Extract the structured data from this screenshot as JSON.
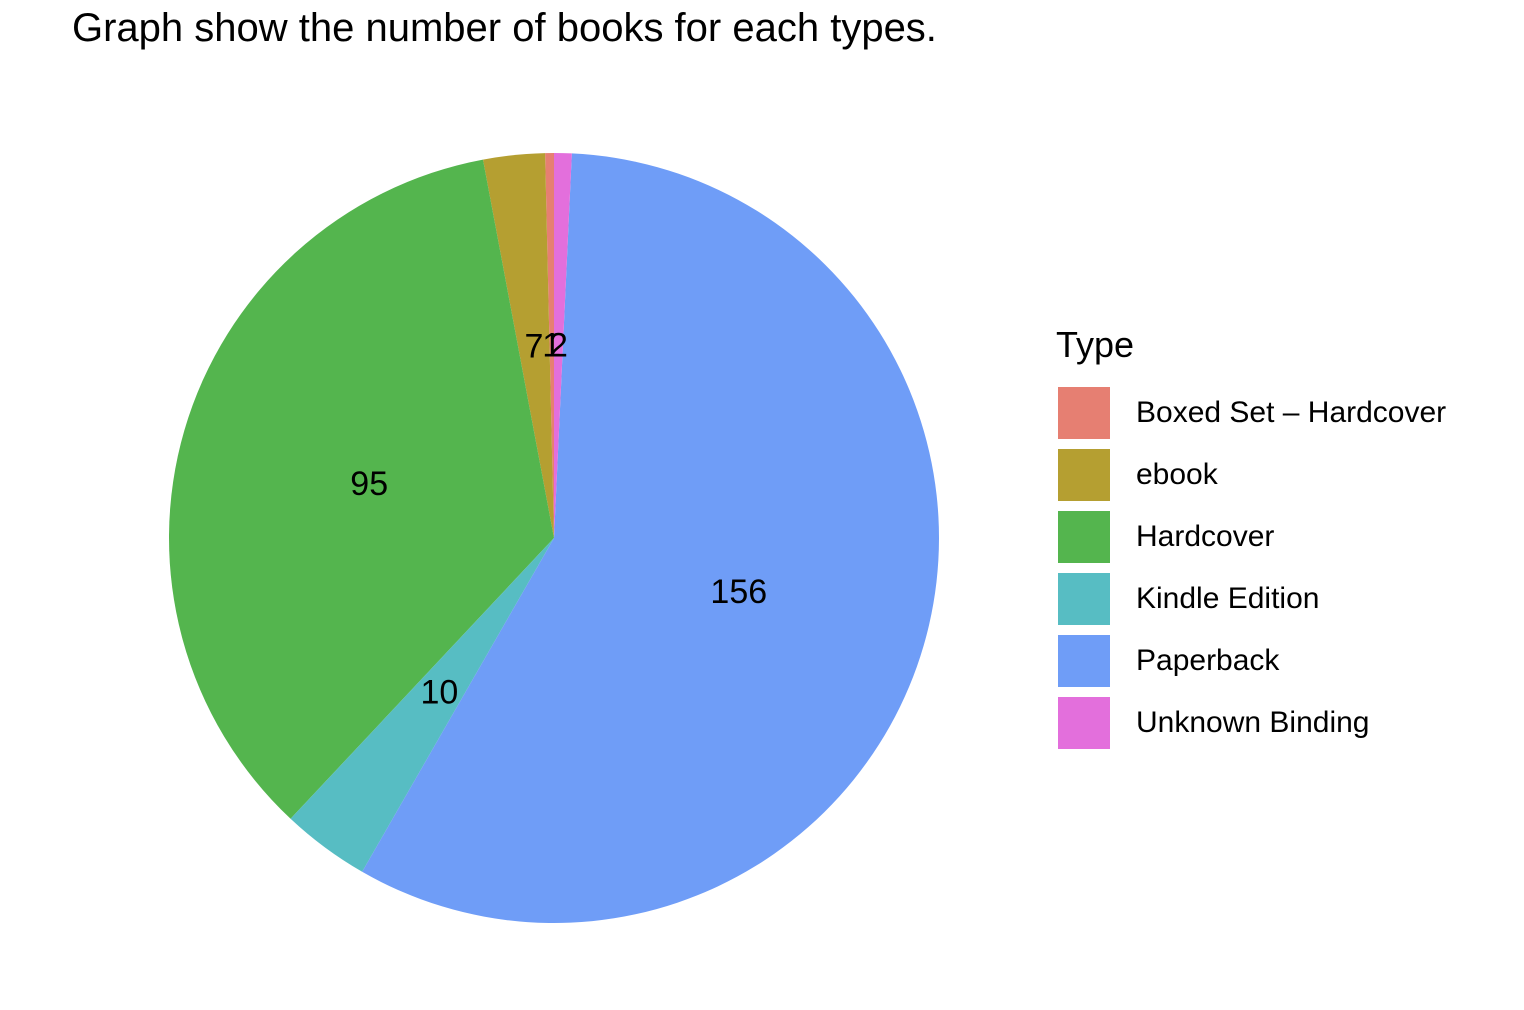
{
  "chart_data": {
    "type": "pie",
    "title": "Graph show the number of books for each types.",
    "legend_title": "Type",
    "legend_position": "right",
    "slices": [
      {
        "name": "Boxed Set – Hardcover",
        "value": 1,
        "label": "1",
        "color": "#E67F72"
      },
      {
        "name": "ebook",
        "value": 7,
        "label": "7",
        "color": "#B59F31"
      },
      {
        "name": "Hardcover",
        "value": 95,
        "label": "95",
        "color": "#54B54E"
      },
      {
        "name": "Kindle Edition",
        "value": 10,
        "label": "10",
        "color": "#57BDC3"
      },
      {
        "name": "Paperback",
        "value": 156,
        "label": "156",
        "color": "#6F9DF7"
      },
      {
        "name": "Unknown Binding",
        "value": 2,
        "label": "2",
        "color": "#E36FDC"
      }
    ]
  }
}
